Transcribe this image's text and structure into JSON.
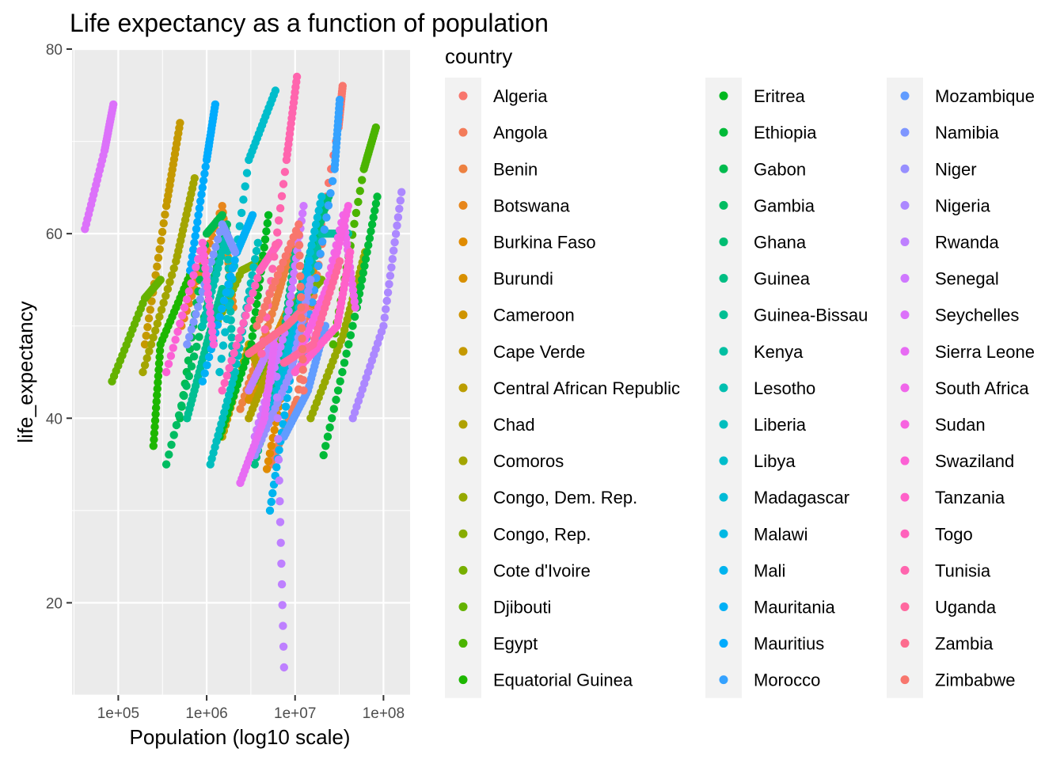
{
  "chart_data": {
    "type": "scatter",
    "title": "Life expectancy as a function of population",
    "xlabel": "Population (log10 scale)",
    "ylabel": "life_expectancy",
    "x_scale": "log10",
    "xlim": [
      30000,
      200000000
    ],
    "ylim": [
      10,
      80
    ],
    "x_ticks": [
      100000,
      1000000,
      10000000,
      100000000
    ],
    "x_tick_labels": [
      "1e+05",
      "1e+06",
      "1e+07",
      "1e+08"
    ],
    "y_ticks": [
      20,
      40,
      60,
      80
    ],
    "y_tick_labels": [
      "20",
      "40",
      "60",
      "80"
    ],
    "grid": true,
    "legend_title": "country",
    "legend_position": "right",
    "series": [
      {
        "name": "Algeria",
        "color": "#F8766D",
        "points": [
          [
            11100000,
            47.5
          ],
          [
            31000000,
            71.5
          ],
          [
            34500000,
            76.0
          ]
        ]
      },
      {
        "name": "Angola",
        "color": "#F37B59",
        "points": [
          [
            5300000,
            35.0
          ],
          [
            10500000,
            42.0
          ],
          [
            21000000,
            60.0
          ]
        ]
      },
      {
        "name": "Benin",
        "color": "#ED8141",
        "points": [
          [
            2400000,
            41.0
          ],
          [
            5800000,
            52.0
          ],
          [
            9500000,
            59.0
          ]
        ]
      },
      {
        "name": "Botswana",
        "color": "#E7861B",
        "points": [
          [
            520000,
            50.0
          ],
          [
            1500000,
            63.0
          ],
          [
            2000000,
            52.0
          ]
        ]
      },
      {
        "name": "Burkina Faso",
        "color": "#E08B00",
        "points": [
          [
            4800000,
            34.5
          ],
          [
            9000000,
            48.0
          ],
          [
            16000000,
            56.0
          ]
        ]
      },
      {
        "name": "Burundi",
        "color": "#D89000",
        "points": [
          [
            3000000,
            42.0
          ],
          [
            5500000,
            48.0
          ],
          [
            9500000,
            53.0
          ]
        ]
      },
      {
        "name": "Cameroon",
        "color": "#CF9400",
        "points": [
          [
            5400000,
            44.0
          ],
          [
            11000000,
            53.0
          ],
          [
            20000000,
            52.0
          ]
        ]
      },
      {
        "name": "Cape Verde",
        "color": "#C59900",
        "points": [
          [
            200000,
            48.0
          ],
          [
            350000,
            63.0
          ],
          [
            500000,
            72.0
          ]
        ]
      },
      {
        "name": "Central African Republic",
        "color": "#BB9D00",
        "points": [
          [
            1500000,
            38.0
          ],
          [
            3000000,
            48.0
          ],
          [
            4400000,
            44.0
          ]
        ]
      },
      {
        "name": "Chad",
        "color": "#AFA100",
        "points": [
          [
            3000000,
            40.0
          ],
          [
            6500000,
            48.0
          ],
          [
            11500000,
            51.0
          ]
        ]
      },
      {
        "name": "Comoros",
        "color": "#A3A500",
        "points": [
          [
            190000,
            45.0
          ],
          [
            450000,
            57.0
          ],
          [
            730000,
            66.0
          ]
        ]
      },
      {
        "name": "Congo, Dem. Rep.",
        "color": "#96A900",
        "points": [
          [
            15000000,
            40.0
          ],
          [
            35000000,
            49.0
          ],
          [
            62000000,
            58.0
          ]
        ]
      },
      {
        "name": "Congo, Rep.",
        "color": "#87AC00",
        "points": [
          [
            1000000,
            48.0
          ],
          [
            2500000,
            56.0
          ],
          [
            4000000,
            57.0
          ]
        ]
      },
      {
        "name": "Cote d'Ivoire",
        "color": "#77AF00",
        "points": [
          [
            3500000,
            44.0
          ],
          [
            10000000,
            52.0
          ],
          [
            20000000,
            55.0
          ]
        ]
      },
      {
        "name": "Djibouti",
        "color": "#64B200",
        "points": [
          [
            85000,
            44.0
          ],
          [
            200000,
            53.0
          ],
          [
            300000,
            55.0
          ]
        ]
      },
      {
        "name": "Egypt",
        "color": "#4BB400",
        "points": [
          [
            27000000,
            48.0
          ],
          [
            60000000,
            67.0
          ],
          [
            82000000,
            71.5
          ]
        ]
      },
      {
        "name": "Equatorial Guinea",
        "color": "#1DB700",
        "points": [
          [
            250000,
            37.0
          ],
          [
            300000,
            48.0
          ],
          [
            680000,
            56.0
          ]
        ]
      },
      {
        "name": "Eritrea",
        "color": "#00B81F",
        "points": [
          [
            1400000,
            38.0
          ],
          [
            3200000,
            48.0
          ],
          [
            5000000,
            62.0
          ]
        ]
      },
      {
        "name": "Ethiopia",
        "color": "#00BA38",
        "points": [
          [
            21000000,
            36.0
          ],
          [
            50000000,
            52.0
          ],
          [
            85000000,
            64.0
          ]
        ]
      },
      {
        "name": "Gabon",
        "color": "#00BB4E",
        "points": [
          [
            500000,
            40.0
          ],
          [
            1000000,
            60.0
          ],
          [
            1500000,
            62.0
          ]
        ]
      },
      {
        "name": "Gambia",
        "color": "#00BC61",
        "points": [
          [
            350000,
            35.0
          ],
          [
            1000000,
            52.0
          ],
          [
            1700000,
            61.0
          ]
        ]
      },
      {
        "name": "Ghana",
        "color": "#00BD72",
        "points": [
          [
            6500000,
            45.0
          ],
          [
            14000000,
            57.0
          ],
          [
            24000000,
            64.0
          ]
        ]
      },
      {
        "name": "Guinea",
        "color": "#00BE83",
        "points": [
          [
            3500000,
            35.0
          ],
          [
            7000000,
            47.0
          ],
          [
            10000000,
            58.0
          ]
        ]
      },
      {
        "name": "Guinea-Bissau",
        "color": "#00BF93",
        "points": [
          [
            600000,
            40.0
          ],
          [
            1000000,
            48.0
          ],
          [
            1500000,
            54.0
          ]
        ]
      },
      {
        "name": "Kenya",
        "color": "#00BFA2",
        "points": [
          [
            8000000,
            47.0
          ],
          [
            20000000,
            60.0
          ],
          [
            40000000,
            60.0
          ]
        ]
      },
      {
        "name": "Lesotho",
        "color": "#00BFB0",
        "points": [
          [
            900000,
            50.0
          ],
          [
            1700000,
            60.0
          ],
          [
            2000000,
            45.0
          ]
        ]
      },
      {
        "name": "Liberia",
        "color": "#00BEBE",
        "points": [
          [
            1100000,
            35.0
          ],
          [
            2100000,
            45.0
          ],
          [
            3800000,
            59.0
          ]
        ]
      },
      {
        "name": "Libya",
        "color": "#00BDCB",
        "points": [
          [
            1400000,
            45.0
          ],
          [
            3000000,
            68.0
          ],
          [
            6000000,
            75.5
          ]
        ]
      },
      {
        "name": "Madagascar",
        "color": "#00BBD7",
        "points": [
          [
            5100000,
            40.0
          ],
          [
            11000000,
            52.0
          ],
          [
            20000000,
            64.0
          ]
        ]
      },
      {
        "name": "Malawi",
        "color": "#00B8E3",
        "points": [
          [
            3500000,
            36.0
          ],
          [
            9000000,
            46.0
          ],
          [
            14000000,
            55.0
          ]
        ]
      },
      {
        "name": "Mali",
        "color": "#00B4EF",
        "points": [
          [
            5200000,
            30.0
          ],
          [
            9000000,
            45.0
          ],
          [
            14500000,
            57.0
          ]
        ]
      },
      {
        "name": "Mauritania",
        "color": "#00B0F6",
        "points": [
          [
            900000,
            44.0
          ],
          [
            2200000,
            58.0
          ],
          [
            3300000,
            62.0
          ]
        ]
      },
      {
        "name": "Mauritius",
        "color": "#00ABFD",
        "points": [
          [
            650000,
            56.0
          ],
          [
            1000000,
            68.0
          ],
          [
            1250000,
            74.0
          ]
        ]
      },
      {
        "name": "Morocco",
        "color": "#35A2FF",
        "points": [
          [
            12000000,
            46.0
          ],
          [
            28000000,
            67.0
          ],
          [
            32000000,
            74.5
          ]
        ]
      },
      {
        "name": "Mozambique",
        "color": "#619CFF",
        "points": [
          [
            7500000,
            38.0
          ],
          [
            14000000,
            43.0
          ],
          [
            22000000,
            50.0
          ]
        ]
      },
      {
        "name": "Namibia",
        "color": "#7E96FF",
        "points": [
          [
            600000,
            48.0
          ],
          [
            1500000,
            61.0
          ],
          [
            2100000,
            58.0
          ]
        ]
      },
      {
        "name": "Niger",
        "color": "#978FFF",
        "points": [
          [
            3500000,
            36.0
          ],
          [
            9000000,
            45.0
          ],
          [
            15000000,
            55.0
          ]
        ]
      },
      {
        "name": "Nigeria",
        "color": "#AC88FF",
        "points": [
          [
            45000000,
            40.0
          ],
          [
            100000000,
            50.0
          ],
          [
            160000000,
            64.5
          ]
        ]
      },
      {
        "name": "Rwanda",
        "color": "#BE80FF",
        "points": [
          [
            3000000,
            43.0
          ],
          [
            6000000,
            49.0
          ],
          [
            7500000,
            13.0
          ]
        ]
      },
      {
        "name": "Senegal",
        "color": "#CF78FF",
        "points": [
          [
            3500000,
            38.0
          ],
          [
            8000000,
            50.0
          ],
          [
            12500000,
            63.0
          ]
        ]
      },
      {
        "name": "Seychelles",
        "color": "#DC71FA",
        "points": [
          [
            42000,
            60.5
          ],
          [
            70000,
            69.0
          ],
          [
            88000,
            74.0
          ]
        ]
      },
      {
        "name": "Sierra Leone",
        "color": "#E76BF3",
        "points": [
          [
            2400000,
            33.0
          ],
          [
            4500000,
            40.0
          ],
          [
            5800000,
            48.0
          ]
        ]
      },
      {
        "name": "South Africa",
        "color": "#F066EA",
        "points": [
          [
            17000000,
            49.0
          ],
          [
            35000000,
            62.0
          ],
          [
            48000000,
            52.0
          ]
        ]
      },
      {
        "name": "Sudan",
        "color": "#F763E0",
        "points": [
          [
            11000000,
            47.0
          ],
          [
            25000000,
            55.0
          ],
          [
            40000000,
            63.0
          ]
        ]
      },
      {
        "name": "Swaziland",
        "color": "#FC61D5",
        "points": [
          [
            350000,
            45.0
          ],
          [
            900000,
            59.0
          ],
          [
            1200000,
            48.0
          ]
        ]
      },
      {
        "name": "Tanzania",
        "color": "#FF61C9",
        "points": [
          [
            10000000,
            45.0
          ],
          [
            30000000,
            50.0
          ],
          [
            42000000,
            58.0
          ]
        ]
      },
      {
        "name": "Togo",
        "color": "#FF62BC",
        "points": [
          [
            1500000,
            43.0
          ],
          [
            4000000,
            56.0
          ],
          [
            6500000,
            59.0
          ]
        ]
      },
      {
        "name": "Tunisia",
        "color": "#FF65AE",
        "points": [
          [
            4200000,
            47.0
          ],
          [
            8000000,
            68.0
          ],
          [
            10500000,
            77.0
          ]
        ]
      },
      {
        "name": "Uganda",
        "color": "#FF689F",
        "points": [
          [
            7500000,
            46.0
          ],
          [
            16000000,
            48.0
          ],
          [
            32000000,
            57.0
          ]
        ]
      },
      {
        "name": "Zambia",
        "color": "#FD6C8E",
        "points": [
          [
            3000000,
            47.0
          ],
          [
            8000000,
            50.0
          ],
          [
            13000000,
            52.0
          ]
        ]
      },
      {
        "name": "Zimbabwe",
        "color": "#F8766D",
        "points": [
          [
            3700000,
            50.0
          ],
          [
            11000000,
            61.0
          ],
          [
            12500000,
            43.0
          ]
        ]
      }
    ]
  }
}
